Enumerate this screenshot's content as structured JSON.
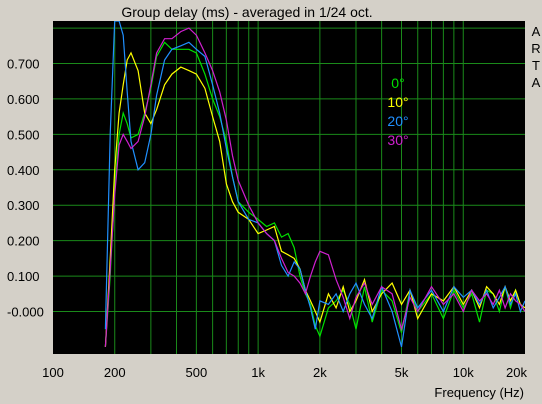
{
  "chart_data": {
    "type": "line",
    "title": "Group delay (ms) - averaged in 1/24 oct.",
    "xlabel": "Frequency (Hz)",
    "ylabel": "",
    "x_scale": "log",
    "xlim": [
      100,
      20000
    ],
    "ylim": [
      -0.12,
      0.82
    ],
    "x_tick_values": [
      100,
      200,
      500,
      1000,
      2000,
      5000,
      10000,
      20000
    ],
    "x_tick_labels": [
      "100",
      "200",
      "500",
      "1k",
      "2k",
      "5k",
      "10k",
      "20k"
    ],
    "y_tick_values": [
      0.7,
      0.6,
      0.5,
      0.4,
      0.3,
      0.2,
      0.1,
      0.0
    ],
    "y_tick_labels": [
      "0.700",
      "0.600",
      "0.500",
      "0.400",
      "0.300",
      "0.200",
      "0.100",
      "-0.000"
    ],
    "grid": true,
    "legend_position": "top-right",
    "side_label": [
      "A",
      "R",
      "T",
      "A"
    ],
    "background": "#000000",
    "grid_color": "#1a8a1a",
    "series": [
      {
        "name": "0°",
        "color": "#00e000",
        "x": [
          180,
          190,
          200,
          210,
          220,
          230,
          240,
          260,
          280,
          300,
          320,
          350,
          380,
          420,
          460,
          500,
          550,
          600,
          650,
          700,
          750,
          800,
          900,
          1000,
          1100,
          1200,
          1300,
          1400,
          1500,
          1600,
          1700,
          1800,
          1900,
          2000,
          2200,
          2400,
          2600,
          2800,
          3000,
          3300,
          3600,
          4000,
          4500,
          5000,
          5500,
          6000,
          7000,
          8000,
          9000,
          10000,
          11000,
          12000,
          13000,
          14000,
          15000,
          16000,
          17000,
          18000,
          19000,
          20000
        ],
        "y": [
          -0.1,
          0.1,
          0.35,
          0.5,
          0.56,
          0.53,
          0.49,
          0.5,
          0.56,
          0.63,
          0.72,
          0.76,
          0.74,
          0.74,
          0.74,
          0.73,
          0.67,
          0.6,
          0.55,
          0.48,
          0.38,
          0.31,
          0.28,
          0.26,
          0.24,
          0.25,
          0.21,
          0.22,
          0.18,
          0.1,
          0.05,
          0.02,
          -0.04,
          -0.07,
          0.01,
          0.03,
          0.06,
          0.02,
          -0.05,
          0.07,
          -0.03,
          0.06,
          0.03,
          -0.06,
          0.06,
          0.0,
          0.05,
          -0.02,
          0.06,
          0.01,
          0.05,
          -0.03,
          0.06,
          0.05,
          0.0,
          0.07,
          0.01,
          0.06,
          0.02,
          0.0
        ]
      },
      {
        "name": "10°",
        "color": "#ffff00",
        "x": [
          180,
          190,
          200,
          210,
          220,
          230,
          240,
          260,
          280,
          300,
          320,
          350,
          380,
          420,
          460,
          500,
          550,
          600,
          650,
          700,
          750,
          800,
          900,
          1000,
          1100,
          1200,
          1300,
          1400,
          1500,
          1600,
          1700,
          1800,
          1900,
          2000,
          2200,
          2400,
          2600,
          2800,
          3000,
          3300,
          3600,
          4000,
          4500,
          5000,
          5500,
          6000,
          7000,
          8000,
          9000,
          10000,
          11000,
          12000,
          13000,
          14000,
          15000,
          16000,
          17000,
          18000,
          19000,
          20000
        ],
        "y": [
          -0.1,
          0.15,
          0.4,
          0.56,
          0.64,
          0.71,
          0.73,
          0.68,
          0.56,
          0.53,
          0.57,
          0.64,
          0.67,
          0.69,
          0.68,
          0.67,
          0.63,
          0.55,
          0.48,
          0.36,
          0.31,
          0.28,
          0.26,
          0.22,
          0.23,
          0.24,
          0.17,
          0.16,
          0.15,
          0.12,
          0.06,
          0.03,
          0.0,
          -0.03,
          0.05,
          0.01,
          0.07,
          0.0,
          0.03,
          0.09,
          0.0,
          0.05,
          0.08,
          0.02,
          0.06,
          -0.02,
          0.05,
          0.03,
          0.07,
          0.02,
          0.06,
          0.01,
          0.07,
          0.05,
          0.02,
          0.07,
          0.03,
          0.06,
          0.02,
          0.01
        ]
      },
      {
        "name": "20°",
        "color": "#2090ff",
        "x": [
          180,
          190,
          200,
          210,
          220,
          230,
          240,
          260,
          280,
          300,
          320,
          350,
          380,
          420,
          460,
          500,
          550,
          600,
          650,
          700,
          750,
          800,
          900,
          1000,
          1100,
          1200,
          1300,
          1400,
          1500,
          1600,
          1700,
          1800,
          1900,
          2000,
          2200,
          2400,
          2600,
          2800,
          3000,
          3300,
          3600,
          4000,
          4500,
          5000,
          5500,
          6000,
          7000,
          8000,
          9000,
          10000,
          11000,
          12000,
          13000,
          14000,
          15000,
          16000,
          17000,
          18000,
          19000,
          20000
        ],
        "y": [
          -0.05,
          0.5,
          0.82,
          0.82,
          0.78,
          0.62,
          0.48,
          0.4,
          0.42,
          0.5,
          0.61,
          0.71,
          0.74,
          0.75,
          0.76,
          0.74,
          0.72,
          0.64,
          0.56,
          0.46,
          0.38,
          0.31,
          0.26,
          0.25,
          0.22,
          0.2,
          0.13,
          0.1,
          0.14,
          0.12,
          0.06,
          0.01,
          -0.05,
          0.03,
          0.02,
          0.05,
          0.0,
          0.05,
          0.08,
          0.02,
          -0.02,
          0.07,
          0.0,
          -0.1,
          0.06,
          0.01,
          0.06,
          0.0,
          0.07,
          0.04,
          0.06,
          0.02,
          0.06,
          0.01,
          0.04,
          0.07,
          0.02,
          0.05,
          0.0,
          0.03
        ]
      },
      {
        "name": "30°",
        "color": "#d020d0",
        "x": [
          180,
          190,
          200,
          210,
          220,
          230,
          240,
          260,
          280,
          300,
          320,
          350,
          380,
          420,
          460,
          500,
          550,
          600,
          650,
          700,
          750,
          800,
          900,
          1000,
          1100,
          1200,
          1300,
          1400,
          1500,
          1600,
          1700,
          1800,
          1900,
          2000,
          2200,
          2400,
          2600,
          2800,
          3000,
          3300,
          3600,
          4000,
          4500,
          5000,
          5500,
          6000,
          7000,
          8000,
          9000,
          10000,
          11000,
          12000,
          13000,
          14000,
          15000,
          16000,
          17000,
          18000,
          19000,
          20000
        ],
        "y": [
          -0.1,
          0.12,
          0.33,
          0.47,
          0.5,
          0.48,
          0.46,
          0.48,
          0.55,
          0.64,
          0.73,
          0.77,
          0.77,
          0.79,
          0.8,
          0.78,
          0.73,
          0.68,
          0.62,
          0.54,
          0.44,
          0.37,
          0.3,
          0.25,
          0.22,
          0.2,
          0.15,
          0.11,
          0.1,
          0.08,
          0.05,
          0.1,
          0.14,
          0.17,
          0.16,
          0.09,
          0.04,
          -0.02,
          0.04,
          0.08,
          0.02,
          0.07,
          0.05,
          -0.05,
          0.04,
          0.0,
          0.07,
          0.02,
          0.05,
          0.0,
          0.06,
          0.03,
          0.05,
          0.02,
          0.06,
          0.01,
          0.05,
          0.03,
          0.02,
          0.0
        ]
      }
    ]
  }
}
